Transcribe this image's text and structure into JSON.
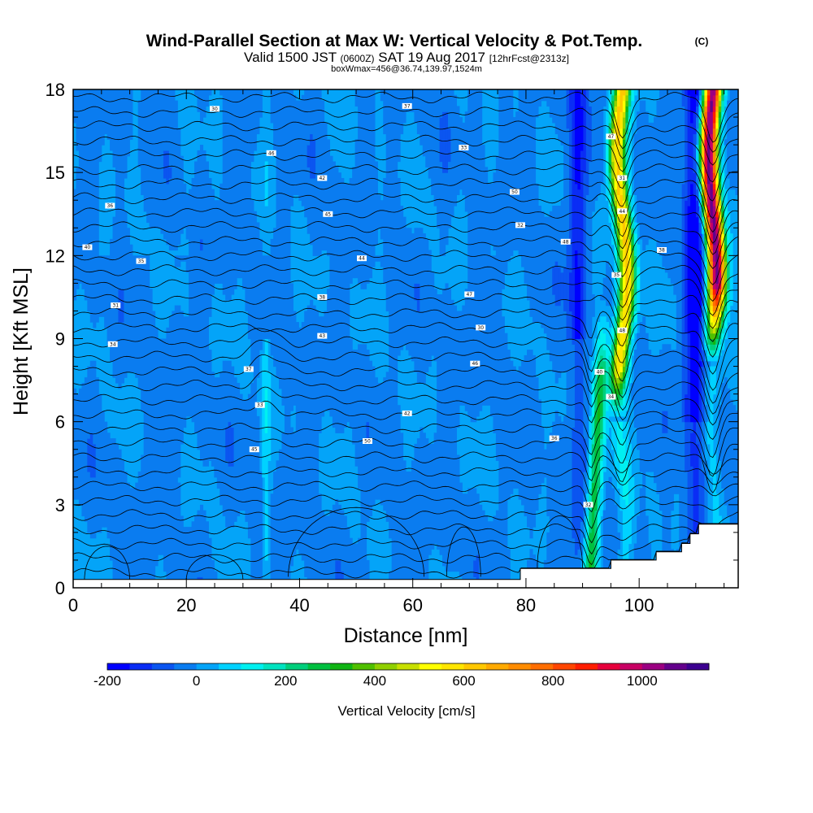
{
  "chart_data": {
    "type": "heatmap",
    "title": "Wind-Parallel Section at Max W: Vertical Velocity & Pot.Temp.",
    "title_mark": "(C)",
    "subtitle_parts": [
      "Valid 1500 JST",
      "(0600Z)",
      "SAT 19 Aug 2017",
      "[12hrFcst@2313z]"
    ],
    "subtitle2": "boxWmax=456@36.74,139.97,1524m",
    "xlabel": "Distance [nm]",
    "ylabel": "Height [Kft MSL]",
    "xlim": [
      0,
      117.5
    ],
    "ylim": [
      0,
      18
    ],
    "x_ticks": [
      "0",
      "20",
      "40",
      "60",
      "80",
      "100"
    ],
    "y_ticks": [
      "0",
      "3",
      "6",
      "9",
      "12",
      "15",
      "18"
    ],
    "colorbar": {
      "title": "Vertical Velocity [cm/s]",
      "min": -200,
      "max": 1150,
      "step": 50,
      "tick_labels": [
        "-200",
        "0",
        "200",
        "400",
        "600",
        "800",
        "1000"
      ],
      "colors": [
        "#0000ff",
        "#0a2df5",
        "#0b55f0",
        "#0a7cf0",
        "#04a4f8",
        "#00d2ff",
        "#00f0f0",
        "#00e3c0",
        "#00cf7c",
        "#00c040",
        "#10b414",
        "#50c000",
        "#90d000",
        "#c8e000",
        "#ffff00",
        "#ffe600",
        "#ffc800",
        "#ffaa00",
        "#ff8c00",
        "#ff6e00",
        "#ff4600",
        "#ff1e00",
        "#e6003c",
        "#c80064",
        "#9b0082",
        "#64008c",
        "#3c0090"
      ]
    },
    "theta_contour_labels": [
      "30",
      "31",
      "32",
      "33",
      "34",
      "35",
      "36",
      "37",
      "38",
      "40",
      "42",
      "43",
      "44",
      "45",
      "46",
      "47",
      "48",
      "50"
    ],
    "updraft_cores": [
      {
        "x": 91.5,
        "w_max": 300
      },
      {
        "x": 97.0,
        "w_max": 620
      },
      {
        "x": 113.0,
        "w_max": 1100
      }
    ],
    "downdraft_cores": [
      {
        "x": 89.0,
        "w_min": -150
      },
      {
        "x": 110.0,
        "w_min": -200
      }
    ],
    "terrain_steps": [
      {
        "x_start": 0,
        "x_end": 79,
        "height": 0.3
      },
      {
        "x_start": 79,
        "x_end": 95,
        "height": 0.7
      },
      {
        "x_start": 95,
        "x_end": 103,
        "height": 1.0
      },
      {
        "x_start": 103,
        "x_end": 107.5,
        "height": 1.3
      },
      {
        "x_start": 107.5,
        "x_end": 109,
        "height": 1.6
      },
      {
        "x_start": 109,
        "x_end": 110.5,
        "height": 1.95
      },
      {
        "x_start": 110.5,
        "x_end": 117.5,
        "height": 2.3
      }
    ]
  }
}
